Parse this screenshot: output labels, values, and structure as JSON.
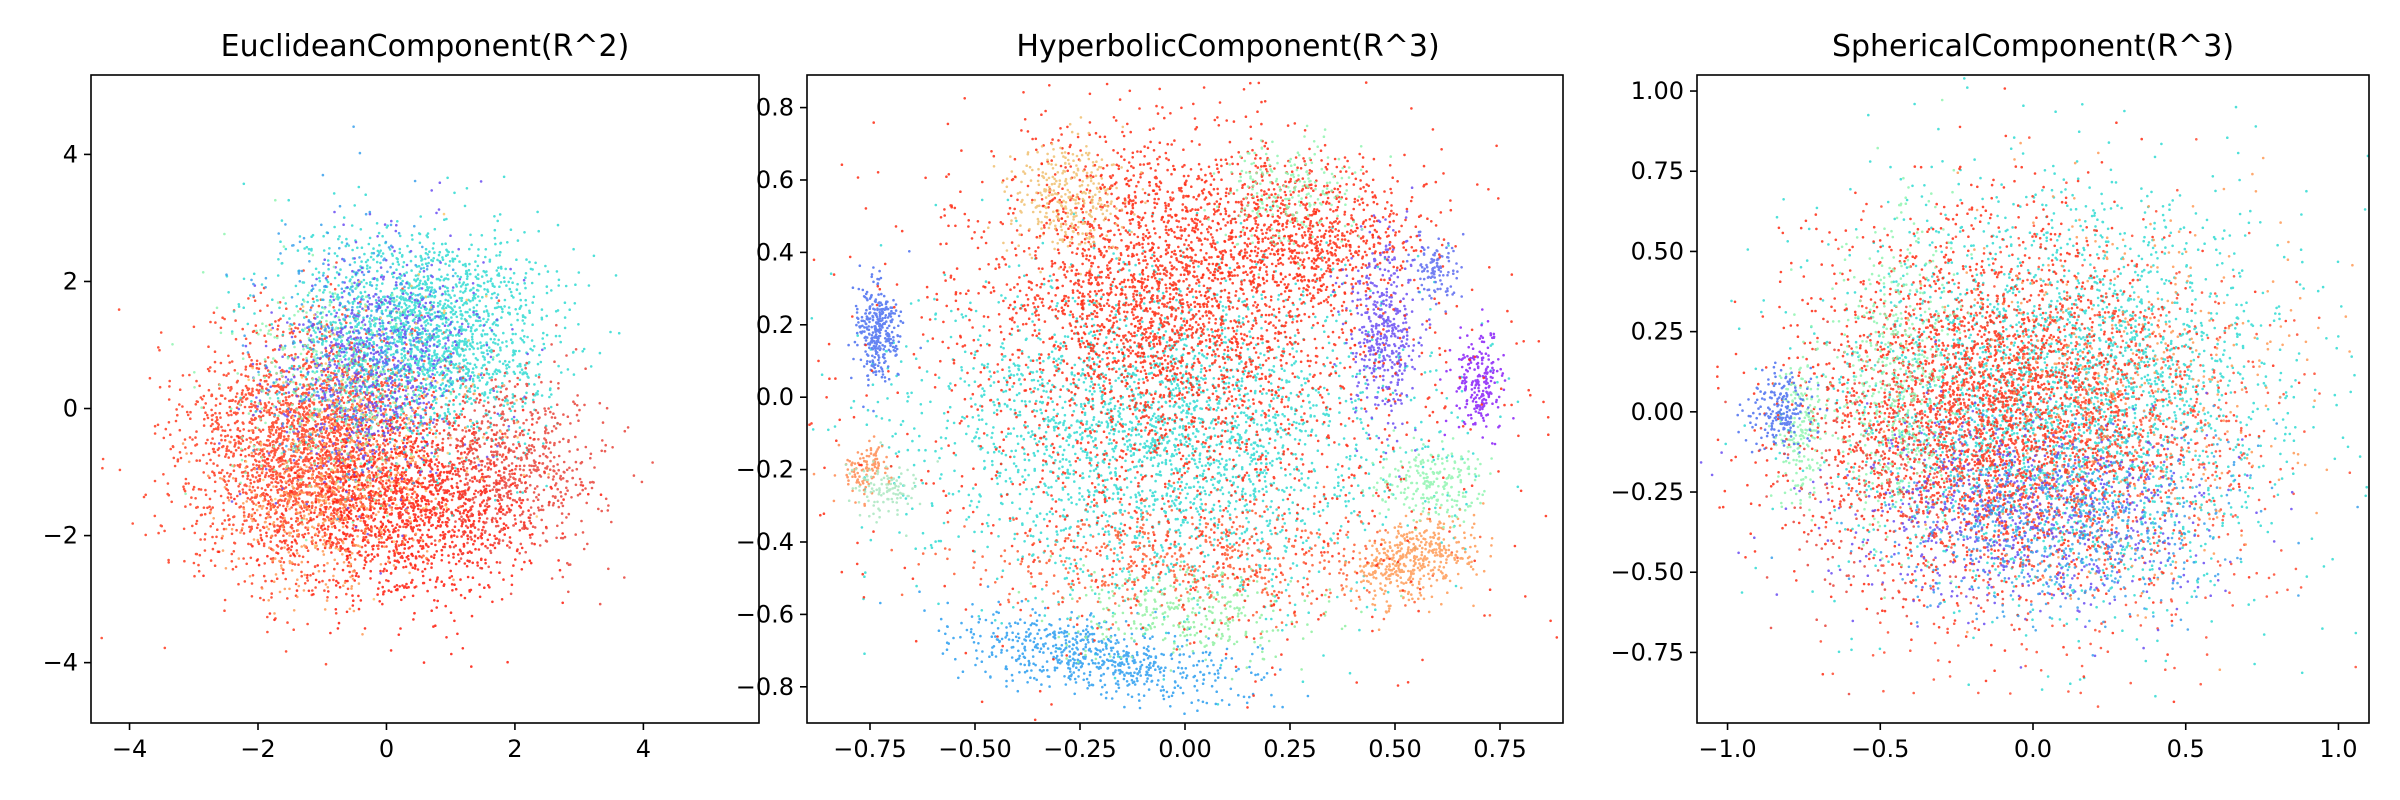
{
  "chart_data": [
    {
      "type": "scatter",
      "title": "EuclideanComponent(R^2)",
      "xlim": [
        -4.6,
        5.8
      ],
      "ylim": [
        -4.95,
        5.25
      ],
      "xticks": [
        -4,
        -2,
        0,
        2,
        4
      ],
      "yticks": [
        -4,
        -2,
        0,
        2,
        4
      ],
      "xtick_labels": [
        "−4",
        "−2",
        "0",
        "2",
        "4"
      ],
      "ytick_labels": [
        "−4",
        "−2",
        "0",
        "2",
        "4"
      ],
      "grid": false,
      "legend": "none",
      "clusters": [
        {
          "color": "#ff3b1f",
          "center": [
            -1.2,
            -0.6
          ],
          "spread": [
            0.9,
            1.0
          ],
          "rotation": -0.5,
          "weight": 0.3
        },
        {
          "color": "#ff1a0a",
          "center": [
            0.4,
            -1.6
          ],
          "spread": [
            0.9,
            0.7
          ],
          "rotation": 0.0,
          "weight": 0.16
        },
        {
          "color": "#2fdbd2",
          "center": [
            0.6,
            1.2
          ],
          "spread": [
            1.0,
            0.8
          ],
          "rotation": -0.2,
          "weight": 0.22
        },
        {
          "color": "#6a4cf2",
          "center": [
            -0.2,
            0.6
          ],
          "spread": [
            0.7,
            0.9
          ],
          "rotation": -0.6,
          "weight": 0.1
        },
        {
          "color": "#e8433a",
          "center": [
            2.0,
            -0.9
          ],
          "spread": [
            0.7,
            0.7
          ],
          "rotation": 0.0,
          "weight": 0.08
        },
        {
          "color": "#ff9a55",
          "center": [
            -1.0,
            -1.5
          ],
          "spread": [
            0.8,
            0.7
          ],
          "rotation": 0.0,
          "weight": 0.05
        },
        {
          "color": "#8ff5b0",
          "center": [
            -0.8,
            0.2
          ],
          "spread": [
            0.8,
            0.8
          ],
          "rotation": 0.0,
          "weight": 0.04
        },
        {
          "color": "#3aa0ec",
          "center": [
            -0.5,
            1.3
          ],
          "spread": [
            0.8,
            1.0
          ],
          "rotation": 0.0,
          "weight": 0.03
        },
        {
          "color": "#ffc56a",
          "center": [
            0.1,
            -0.2
          ],
          "spread": [
            1.0,
            1.0
          ],
          "rotation": 0.0,
          "weight": 0.02
        }
      ]
    },
    {
      "type": "scatter",
      "title": "HyperbolicComponent(R^3)",
      "xlim": [
        -0.9,
        0.9
      ],
      "ylim": [
        -0.9,
        0.89
      ],
      "xticks": [
        -0.75,
        -0.5,
        -0.25,
        0.0,
        0.25,
        0.5,
        0.75
      ],
      "yticks": [
        -0.8,
        -0.6,
        -0.4,
        -0.2,
        0.0,
        0.2,
        0.4,
        0.6,
        0.8
      ],
      "xtick_labels": [
        "−0.75",
        "−0.50",
        "−0.25",
        "0.00",
        "0.25",
        "0.50",
        "0.75"
      ],
      "ytick_labels": [
        "−0.8",
        "−0.6",
        "−0.4",
        "−0.2",
        "0.0",
        "0.2",
        "0.4",
        "0.6",
        "0.8"
      ],
      "grid": false,
      "legend": "none",
      "clusters": [
        {
          "color": "#2fdbd2",
          "center": [
            -0.05,
            -0.1
          ],
          "spread": [
            0.28,
            0.22
          ],
          "rotation": 0.0,
          "weight": 0.24
        },
        {
          "color": "#ff2a12",
          "center": [
            -0.05,
            0.3
          ],
          "spread": [
            0.2,
            0.22
          ],
          "rotation": 0.0,
          "weight": 0.2
        },
        {
          "color": "#ff2a12",
          "center": [
            0.3,
            0.45
          ],
          "spread": [
            0.12,
            0.1
          ],
          "rotation": 0.0,
          "weight": 0.06
        },
        {
          "color": "#f0c070",
          "center": [
            -0.28,
            0.55
          ],
          "spread": [
            0.07,
            0.08
          ],
          "rotation": 0.0,
          "weight": 0.03
        },
        {
          "color": "#2a9df0",
          "center": [
            -0.2,
            -0.72
          ],
          "spread": [
            0.18,
            0.05
          ],
          "rotation": -0.2,
          "weight": 0.06
        },
        {
          "color": "#8ef0a0",
          "center": [
            0.0,
            -0.6
          ],
          "spread": [
            0.15,
            0.06
          ],
          "rotation": 0.0,
          "weight": 0.03
        },
        {
          "color": "#ff5a30",
          "center": [
            0.0,
            -0.45
          ],
          "spread": [
            0.25,
            0.08
          ],
          "rotation": 0.0,
          "weight": 0.05
        },
        {
          "color": "#4a6ff0",
          "center": [
            -0.735,
            0.18
          ],
          "spread": [
            0.025,
            0.07
          ],
          "rotation": 0.0,
          "weight": 0.03
        },
        {
          "color": "#8a20f8",
          "center": [
            0.7,
            0.05
          ],
          "spread": [
            0.03,
            0.07
          ],
          "rotation": 0.0,
          "weight": 0.02
        },
        {
          "color": "#6a4cf2",
          "center": [
            0.47,
            0.18
          ],
          "spread": [
            0.04,
            0.14
          ],
          "rotation": 0.0,
          "weight": 0.04
        },
        {
          "color": "#5a6af0",
          "center": [
            0.6,
            0.35
          ],
          "spread": [
            0.025,
            0.04
          ],
          "rotation": 0.0,
          "weight": 0.01
        },
        {
          "color": "#ff9a55",
          "center": [
            0.55,
            -0.45
          ],
          "spread": [
            0.08,
            0.05
          ],
          "rotation": 0.5,
          "weight": 0.04
        },
        {
          "color": "#8ff5b0",
          "center": [
            0.58,
            -0.24
          ],
          "spread": [
            0.06,
            0.05
          ],
          "rotation": 0.0,
          "weight": 0.02
        },
        {
          "color": "#ff8a50",
          "center": [
            -0.76,
            -0.2
          ],
          "spread": [
            0.03,
            0.04
          ],
          "rotation": 0.0,
          "weight": 0.01
        },
        {
          "color": "#a9e6c0",
          "center": [
            -0.72,
            -0.25
          ],
          "spread": [
            0.04,
            0.04
          ],
          "rotation": 0.0,
          "weight": 0.01
        },
        {
          "color": "#8ff5b0",
          "center": [
            0.25,
            0.55
          ],
          "spread": [
            0.08,
            0.08
          ],
          "rotation": 0.0,
          "weight": 0.02
        },
        {
          "color": "#ff2a12",
          "center": [
            0.0,
            0.0
          ],
          "spread": [
            0.35,
            0.35
          ],
          "rotation": 0.0,
          "weight": 0.13
        }
      ]
    },
    {
      "type": "scatter",
      "title": "SphericalComponent(R^3)",
      "xlim": [
        -1.1,
        1.1
      ],
      "ylim": [
        -0.97,
        1.05
      ],
      "xticks": [
        -1.0,
        -0.5,
        0.0,
        0.5,
        1.0
      ],
      "yticks": [
        -0.75,
        -0.5,
        -0.25,
        0.0,
        0.25,
        0.5,
        0.75,
        1.0
      ],
      "xtick_labels": [
        "−1.0",
        "−0.5",
        "0.0",
        "0.5",
        "1.0"
      ],
      "ytick_labels": [
        "−0.75",
        "−0.50",
        "−0.25",
        "0.00",
        "0.25",
        "0.50",
        "0.75",
        "1.00"
      ],
      "grid": false,
      "legend": "none",
      "clusters": [
        {
          "color": "#2fdbd2",
          "center": [
            0.1,
            0.05
          ],
          "spread": [
            0.35,
            0.3
          ],
          "rotation": 0.0,
          "weight": 0.3
        },
        {
          "color": "#ff2a12",
          "center": [
            -0.15,
            0.0
          ],
          "spread": [
            0.3,
            0.28
          ],
          "rotation": 0.0,
          "weight": 0.28
        },
        {
          "color": "#ff4a30",
          "center": [
            0.15,
            -0.1
          ],
          "spread": [
            0.32,
            0.3
          ],
          "rotation": 0.0,
          "weight": 0.12
        },
        {
          "color": "#6a4cf2",
          "center": [
            0.0,
            -0.3
          ],
          "spread": [
            0.3,
            0.15
          ],
          "rotation": 0.0,
          "weight": 0.08
        },
        {
          "color": "#3aa0ec",
          "center": [
            0.1,
            -0.35
          ],
          "spread": [
            0.3,
            0.15
          ],
          "rotation": 0.0,
          "weight": 0.06
        },
        {
          "color": "#8ff5b0",
          "center": [
            -0.45,
            0.1
          ],
          "spread": [
            0.1,
            0.25
          ],
          "rotation": 0.0,
          "weight": 0.05
        },
        {
          "color": "#8ff5b0",
          "center": [
            -0.76,
            -0.05
          ],
          "spread": [
            0.04,
            0.12
          ],
          "rotation": 0.0,
          "weight": 0.02
        },
        {
          "color": "#4a6ff0",
          "center": [
            -0.82,
            0.0
          ],
          "spread": [
            0.05,
            0.06
          ],
          "rotation": 0.0,
          "weight": 0.02
        },
        {
          "color": "#ff9a55",
          "center": [
            0.3,
            0.1
          ],
          "spread": [
            0.3,
            0.3
          ],
          "rotation": 0.0,
          "weight": 0.04
        },
        {
          "color": "#e8433a",
          "center": [
            -0.4,
            -0.2
          ],
          "spread": [
            0.25,
            0.2
          ],
          "rotation": 0.0,
          "weight": 0.03
        }
      ]
    }
  ]
}
